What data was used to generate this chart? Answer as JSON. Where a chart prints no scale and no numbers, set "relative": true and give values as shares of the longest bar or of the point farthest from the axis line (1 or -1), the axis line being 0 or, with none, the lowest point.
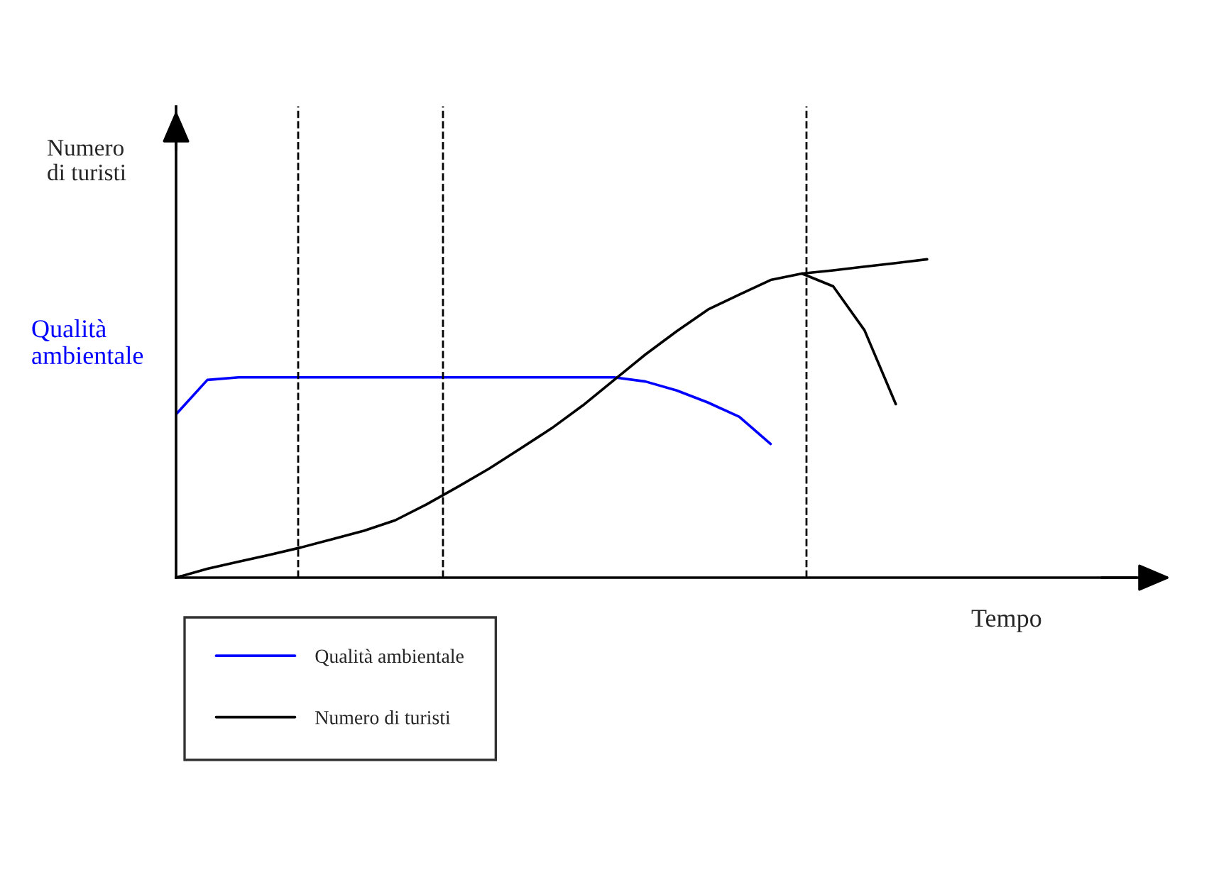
{
  "chart_data": {
    "type": "line",
    "relative": true,
    "ylabel": "Numero\ndi turisti",
    "xlabel": "Tempo",
    "annotations": [
      "Qualità\nambientale"
    ],
    "categories": [
      null,
      null,
      null,
      null,
      null,
      null,
      null,
      null,
      null,
      null,
      null,
      null,
      null,
      null,
      null,
      null,
      null,
      null,
      null,
      null,
      null,
      null,
      null,
      null,
      null
    ],
    "series": [
      {
        "name": "Qualità ambientale",
        "color": "#0000ff",
        "values": [
          0.513,
          0.621,
          0.629,
          0.629,
          0.629,
          0.629,
          0.629,
          0.629,
          0.629,
          0.629,
          0.629,
          0.629,
          0.629,
          0.629,
          0.629,
          0.616,
          0.588,
          0.55,
          0.505,
          0.42,
          null,
          null,
          null,
          null,
          null
        ]
      },
      {
        "name": "Numero di turisti",
        "color": "#000000",
        "values": [
          0,
          0.028,
          0.05,
          0.072,
          0.095,
          0.121,
          0.147,
          0.18,
          0.23,
          0.285,
          0.342,
          0.405,
          0.469,
          0.541,
          0.621,
          0.701,
          0.774,
          0.842,
          0.889,
          0.935,
          0.955,
          0.965,
          0.977,
          0.988,
          1
        ]
      },
      {
        "color": "#000000",
        "values": [
          null,
          null,
          null,
          null,
          null,
          null,
          null,
          null,
          null,
          null,
          null,
          null,
          null,
          null,
          null,
          null,
          null,
          null,
          null,
          null,
          0.955,
          0.915,
          0.777,
          0.545,
          null
        ]
      }
    ],
    "legend": "bottom left"
  }
}
